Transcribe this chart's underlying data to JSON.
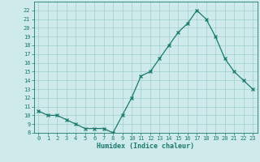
{
  "x": [
    0,
    1,
    2,
    3,
    4,
    5,
    6,
    7,
    8,
    9,
    10,
    11,
    12,
    13,
    14,
    15,
    16,
    17,
    18,
    19,
    20,
    21,
    22,
    23
  ],
  "y": [
    10.5,
    10.0,
    10.0,
    9.5,
    9.0,
    8.5,
    8.5,
    8.5,
    8.0,
    10.0,
    12.0,
    14.5,
    15.0,
    16.5,
    18.0,
    19.5,
    20.5,
    22.0,
    21.0,
    19.0,
    16.5,
    15.0,
    14.0,
    13.0
  ],
  "xlabel": "Humidex (Indice chaleur)",
  "ylim": [
    8,
    23
  ],
  "xlim": [
    -0.5,
    23.5
  ],
  "yticks": [
    8,
    9,
    10,
    11,
    12,
    13,
    14,
    15,
    16,
    17,
    18,
    19,
    20,
    21,
    22
  ],
  "xticks": [
    0,
    1,
    2,
    3,
    4,
    5,
    6,
    7,
    8,
    9,
    10,
    11,
    12,
    13,
    14,
    15,
    16,
    17,
    18,
    19,
    20,
    21,
    22,
    23
  ],
  "line_color": "#1a7a6e",
  "marker_color": "#1a7a6e",
  "bg_color": "#ceeaea",
  "grid_color": "#9fcfcc",
  "tick_font_size": 5.0,
  "label_font_size": 6.0
}
